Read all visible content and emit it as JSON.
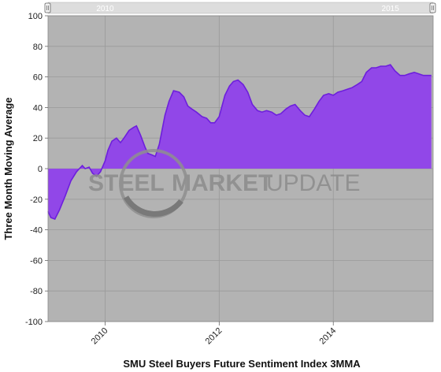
{
  "chart_data": {
    "type": "area",
    "title": "",
    "xlabel": "SMU Steel Buyers Future Sentiment Index 3MMA",
    "ylabel": "Three Month Moving Average",
    "ylim": [
      -100,
      100
    ],
    "y_ticks": [
      100,
      80,
      60,
      40,
      20,
      0,
      -20,
      -40,
      -60,
      -80,
      -100
    ],
    "xlim": [
      2009.0,
      2015.75
    ],
    "x_ticks": [
      {
        "value": 2010,
        "label": "2010"
      },
      {
        "value": 2012,
        "label": "2012"
      },
      {
        "value": 2014,
        "label": "2014"
      }
    ],
    "grid": true,
    "legend": "none",
    "colors": {
      "area_fill": "#9147e8",
      "area_line": "#6d1fdc",
      "plot_background": "#b3b3b3",
      "navigator": "#dddddd"
    },
    "navigator_labels": [
      {
        "value": 2010,
        "label": "2010"
      },
      {
        "value": 2015,
        "label": "2015"
      }
    ],
    "watermark": {
      "steel": "STEEL",
      "market": "MARKET",
      "update": "UPDATE"
    },
    "series": [
      {
        "x": [
          2009.0,
          2009.05,
          2009.12,
          2009.2,
          2009.3,
          2009.4,
          2009.5,
          2009.55,
          2009.6,
          2009.65,
          2009.72,
          2009.78,
          2009.85,
          2009.92,
          2010.0,
          2010.05,
          2010.12,
          2010.2,
          2010.27,
          2010.33,
          2010.42,
          2010.5,
          2010.55,
          2010.62,
          2010.7,
          2010.75,
          2010.82,
          2010.88,
          2010.95,
          2011.05,
          2011.12,
          2011.2,
          2011.3,
          2011.38,
          2011.45,
          2011.52,
          2011.6,
          2011.7,
          2011.78,
          2011.85,
          2011.92,
          2012.0,
          2012.1,
          2012.18,
          2012.25,
          2012.33,
          2012.42,
          2012.5,
          2012.58,
          2012.67,
          2012.75,
          2012.83,
          2012.92,
          2013.0,
          2013.08,
          2013.17,
          2013.25,
          2013.33,
          2013.42,
          2013.5,
          2013.58,
          2013.67,
          2013.75,
          2013.83,
          2013.92,
          2014.0,
          2014.08,
          2014.17,
          2014.25,
          2014.33,
          2014.42,
          2014.5,
          2014.58,
          2014.67,
          2014.75,
          2014.83,
          2014.92,
          2015.0,
          2015.08,
          2015.17,
          2015.25,
          2015.33,
          2015.42,
          2015.5,
          2015.58,
          2015.67,
          2015.72
        ],
        "values": [
          -28,
          -32,
          -33,
          -27,
          -18,
          -8,
          -2,
          0,
          2,
          0,
          1,
          -3,
          -5,
          -2,
          5,
          12,
          18,
          20,
          17,
          20,
          25,
          27,
          28,
          22,
          14,
          10,
          9,
          8,
          16,
          35,
          44,
          51,
          50,
          47,
          41,
          39,
          37,
          34,
          33,
          30,
          30,
          34,
          48,
          54,
          57,
          58,
          55,
          50,
          42,
          38,
          37,
          38,
          37,
          35,
          36,
          39,
          41,
          42,
          38,
          35,
          34,
          39,
          44,
          48,
          49,
          48,
          50,
          51,
          52,
          53,
          55,
          57,
          63,
          66,
          66,
          67,
          67,
          68,
          64,
          61,
          61,
          62,
          63,
          62,
          61,
          61,
          61
        ]
      }
    ]
  }
}
